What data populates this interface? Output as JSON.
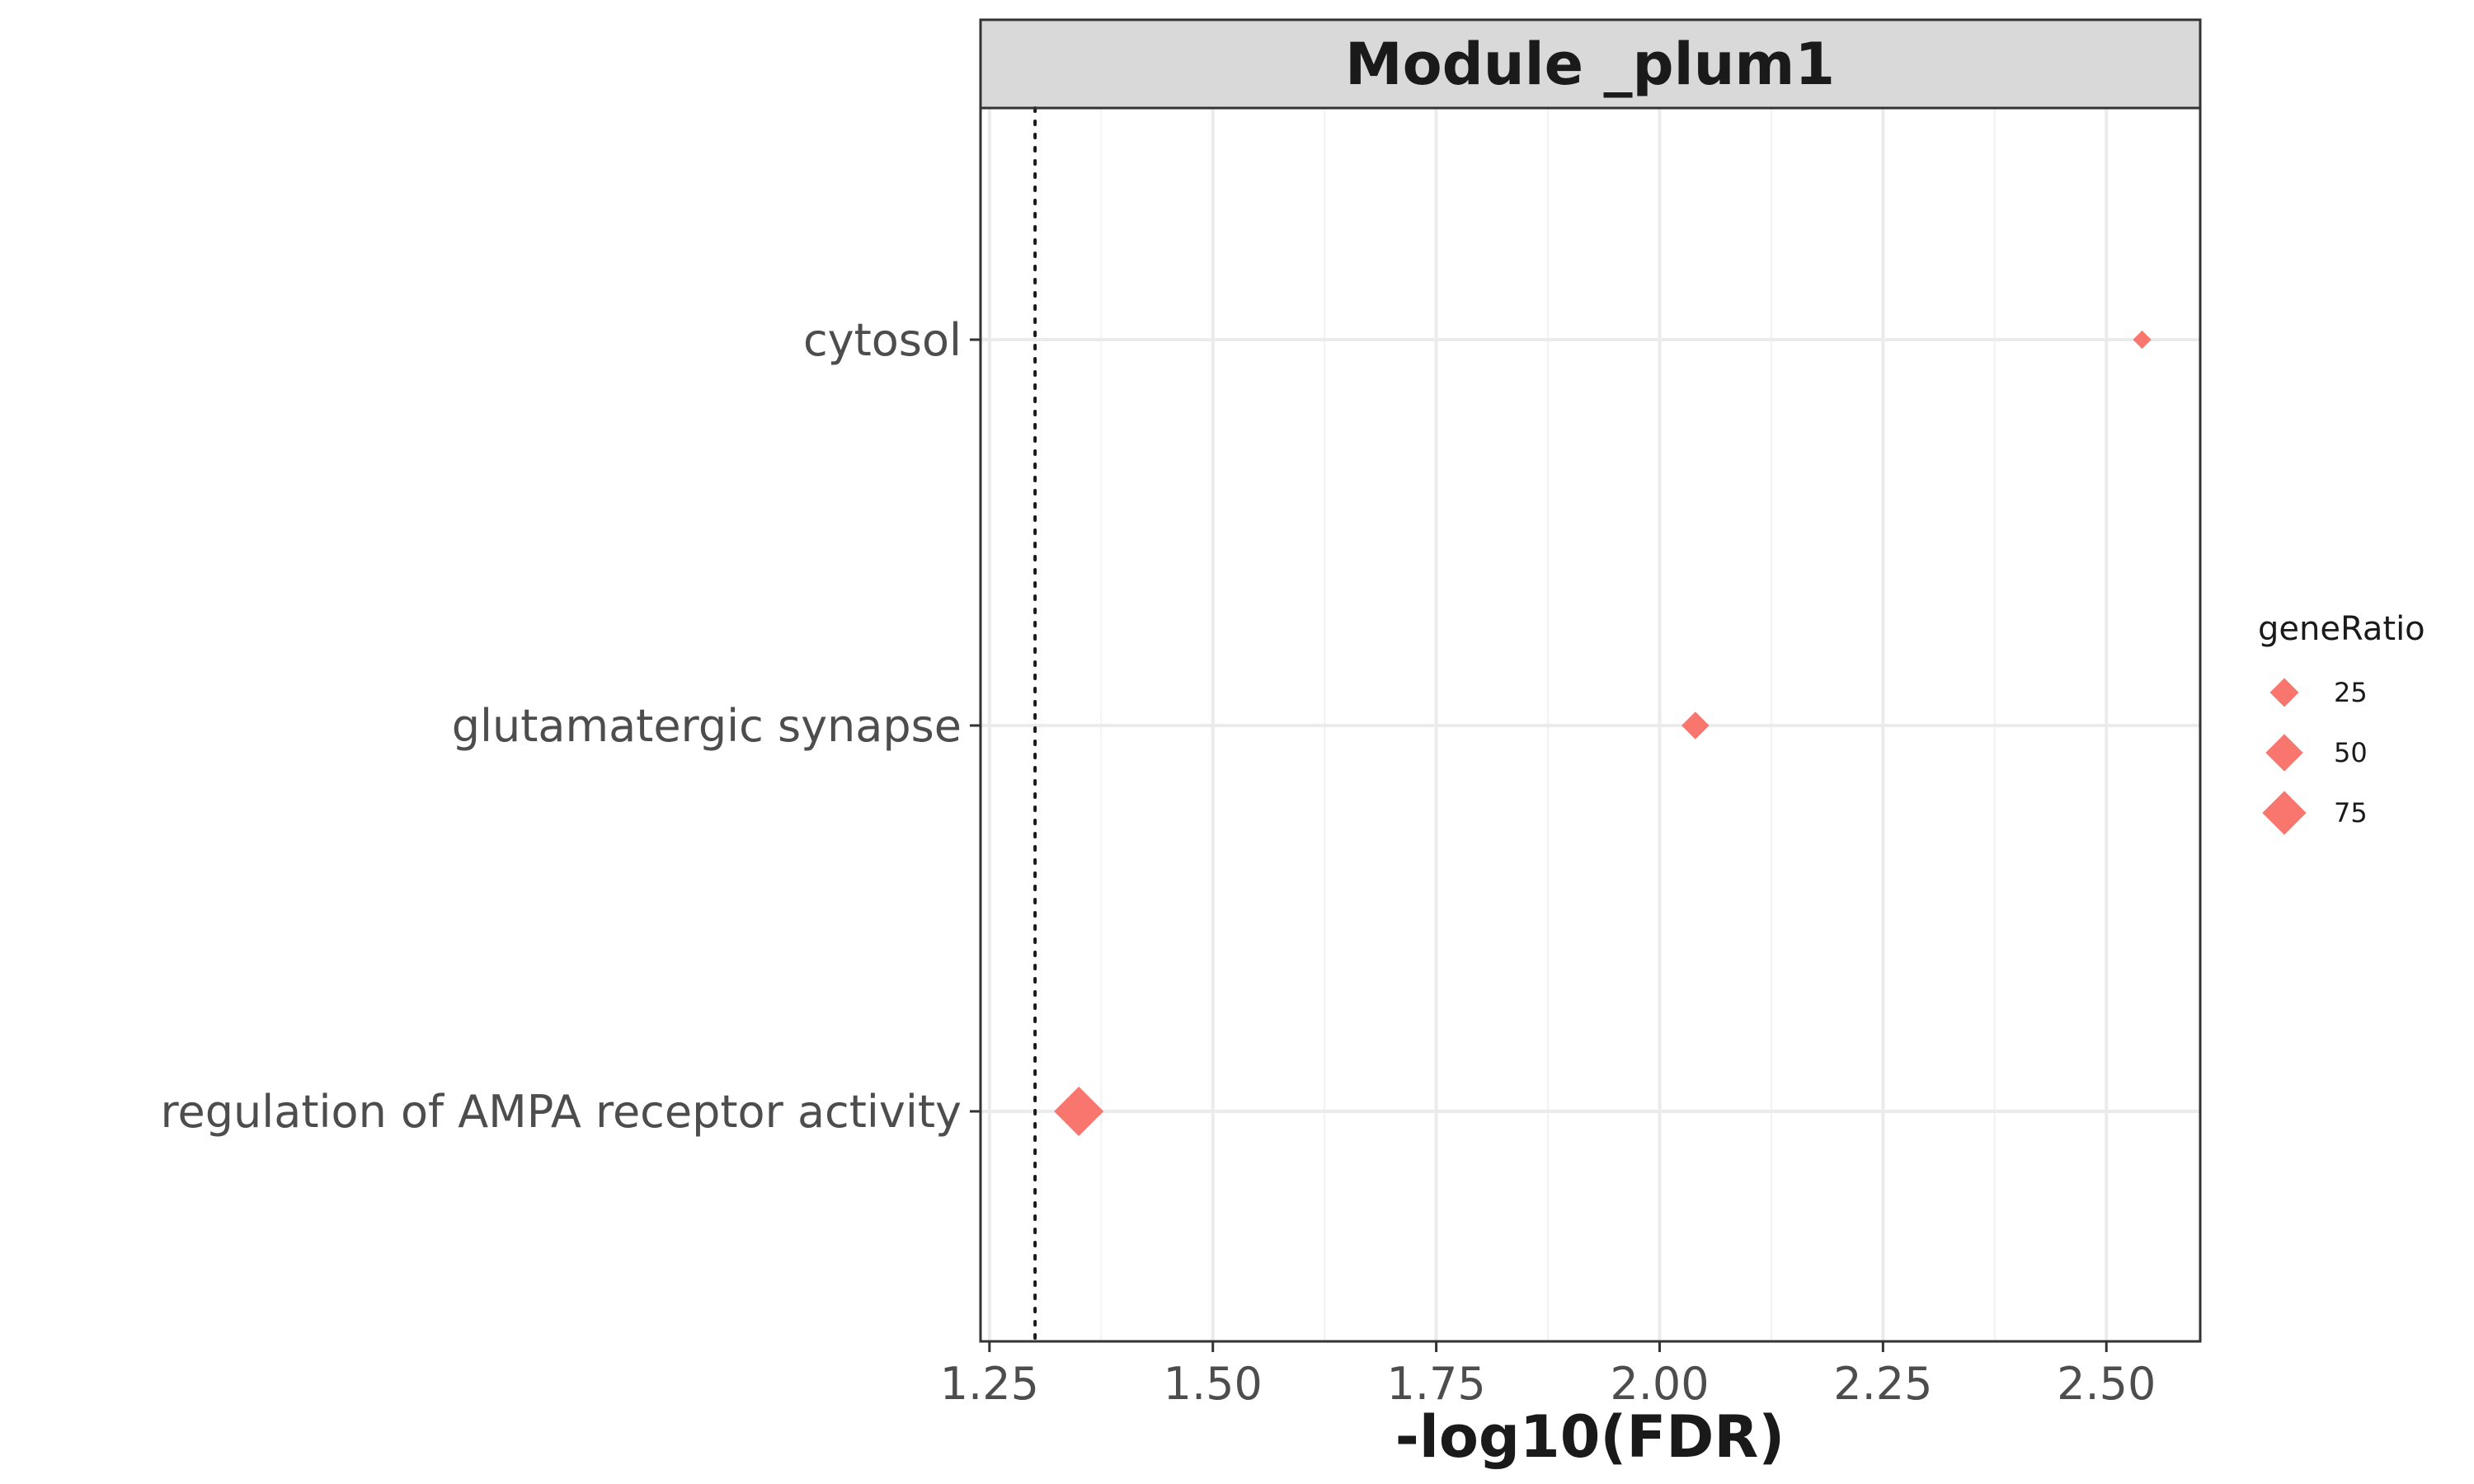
{
  "chart_data": {
    "type": "scatter",
    "facet_title": "Module _plum1",
    "xlabel": "-log10(FDR)",
    "ylabel": "",
    "xlim": [
      1.24,
      2.605
    ],
    "x_ticks": [
      1.25,
      1.5,
      1.75,
      2.0,
      2.25,
      2.5
    ],
    "x_tick_labels": [
      "1.25",
      "1.50",
      "1.75",
      "2.00",
      "2.25",
      "2.50"
    ],
    "threshold_line_x": 1.30103,
    "threshold_line_style": "dotted",
    "categories": [
      "cytosol",
      "glutamatergic synapse",
      "regulation of AMPA receptor activity"
    ],
    "points": [
      {
        "category": "cytosol",
        "x": 2.54,
        "geneRatio": 6
      },
      {
        "category": "glutamatergic synapse",
        "x": 2.04,
        "geneRatio": 22
      },
      {
        "category": "regulation of AMPA receptor activity",
        "x": 1.35,
        "geneRatio": 100
      }
    ],
    "marker": "diamond",
    "marker_color": "#F8766D",
    "grid": true,
    "legend": {
      "title": "geneRatio",
      "placement": "right",
      "entries": [
        {
          "label": "25",
          "value": 25
        },
        {
          "label": "50",
          "value": 50
        },
        {
          "label": "75",
          "value": 75
        }
      ]
    }
  }
}
